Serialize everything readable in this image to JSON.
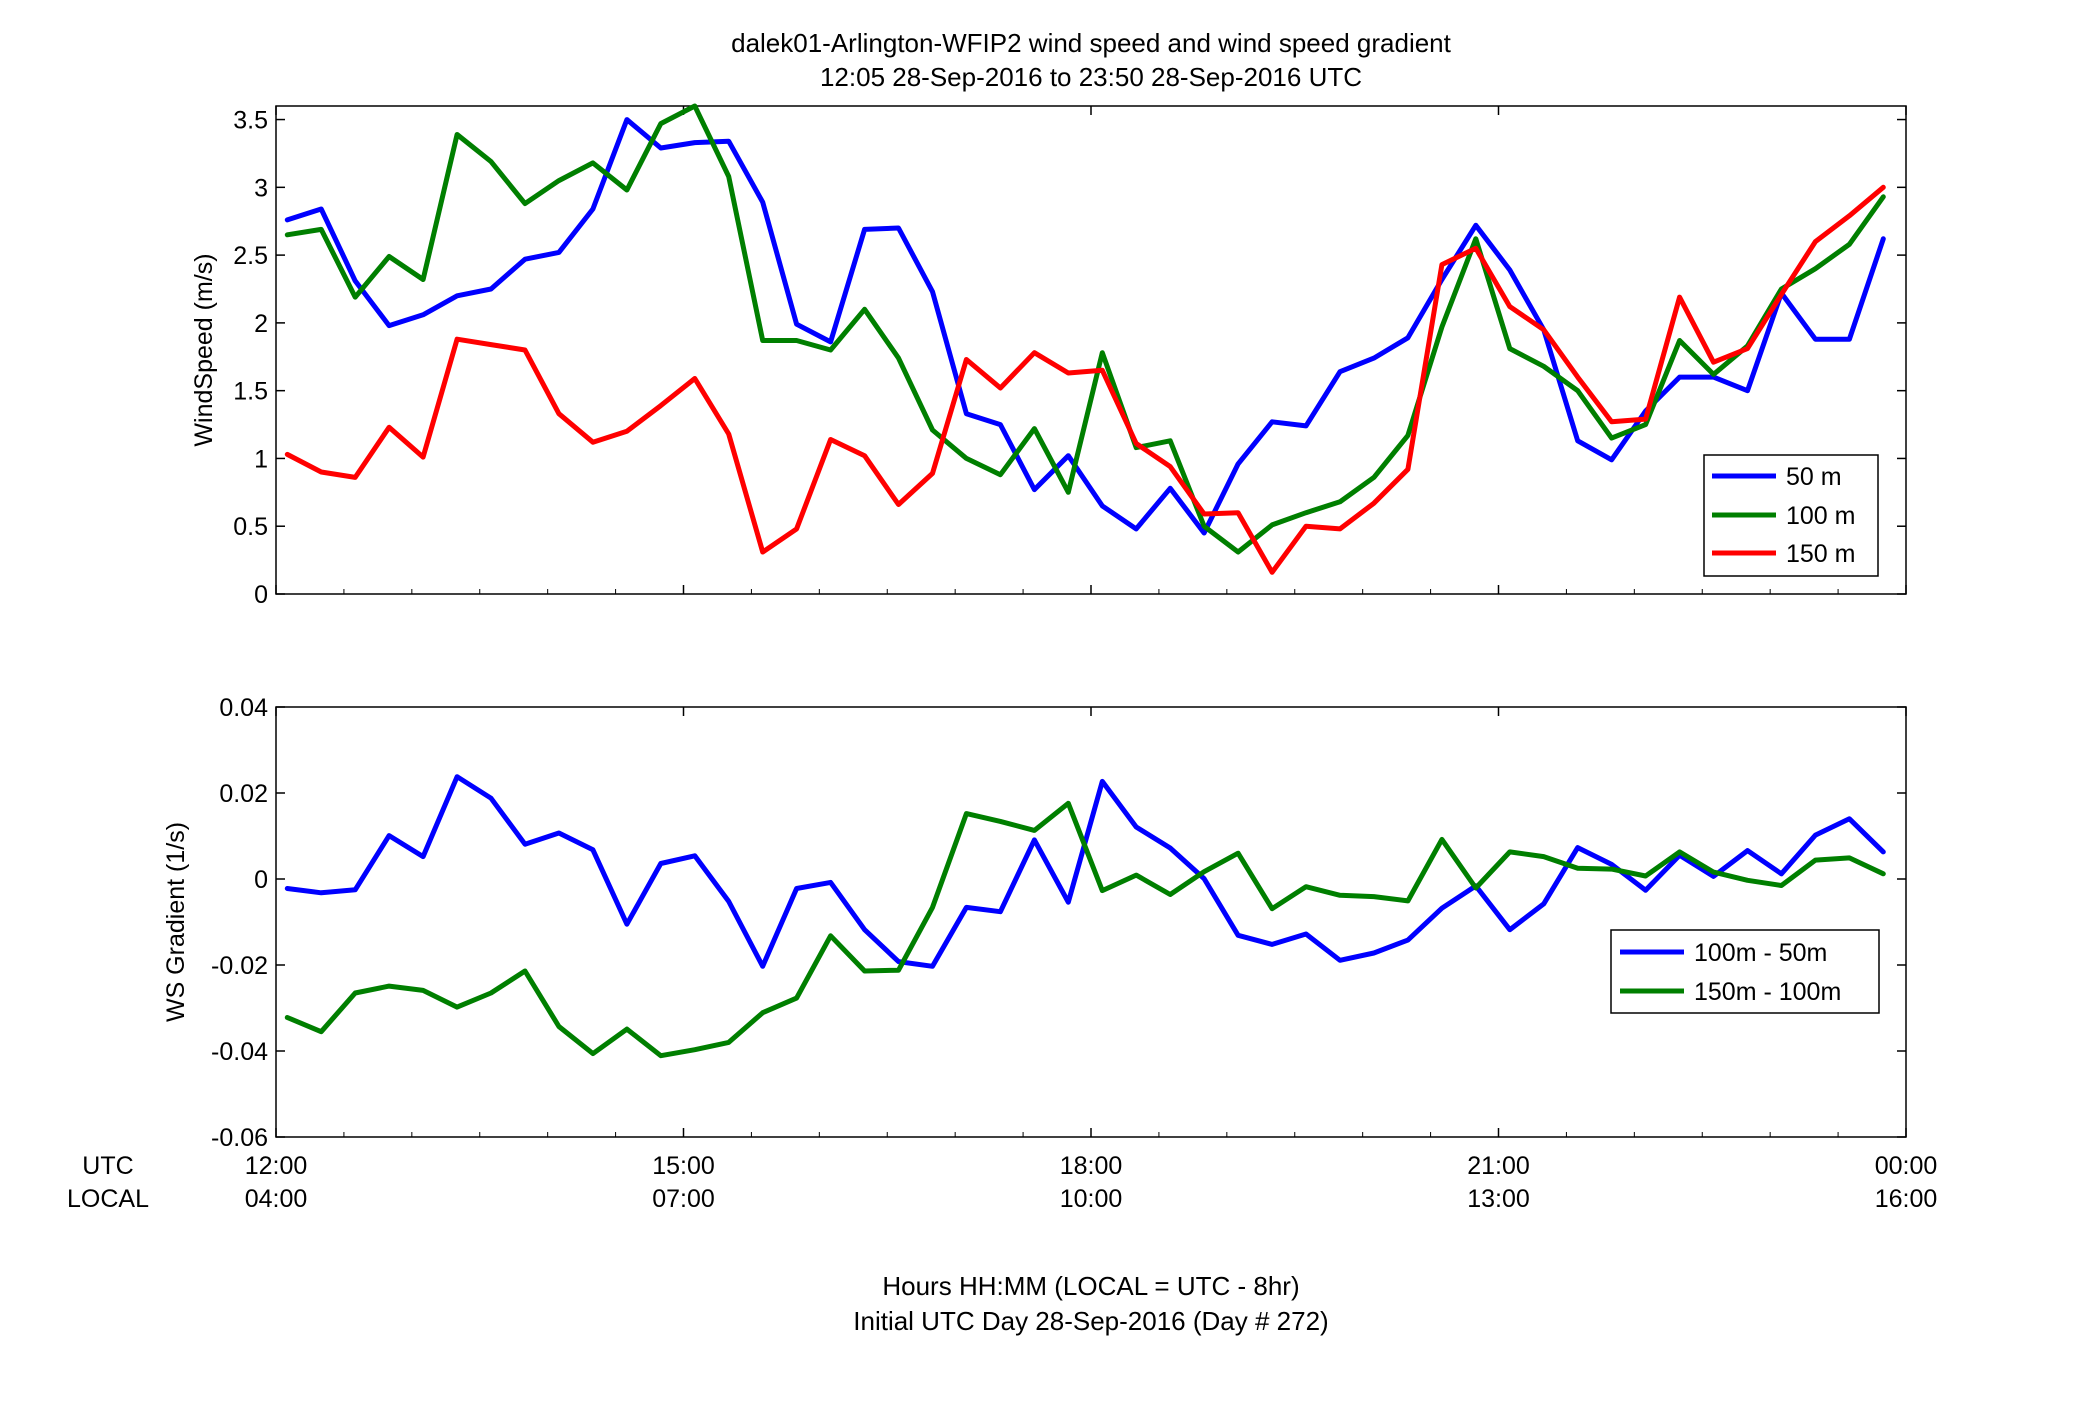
{
  "chart_data": [
    {
      "type": "line",
      "title": "dalek01-Arlington-WFIP2  wind speed and wind speed gradient",
      "subtitle": "12:05 28-Sep-2016 to 23:50 28-Sep-2016  UTC",
      "xlabel": "",
      "ylabel": "WindSpeed (m/s)",
      "xlim": [
        0,
        12
      ],
      "ylim": [
        0,
        3.6
      ],
      "yticks": [
        "0",
        "0.5",
        "1",
        "1.5",
        "2",
        "2.5",
        "3",
        "3.5"
      ],
      "grid": false,
      "legend": "right",
      "x": [
        0.083,
        0.333,
        0.583,
        0.833,
        1.083,
        1.333,
        1.583,
        1.833,
        2.083,
        2.333,
        2.583,
        2.833,
        3.083,
        3.333,
        3.583,
        3.833,
        4.083,
        4.333,
        4.583,
        4.833,
        5.083,
        5.333,
        5.583,
        5.833,
        6.083,
        6.333,
        6.583,
        6.833,
        7.083,
        7.333,
        7.583,
        7.833,
        8.083,
        8.333,
        8.583,
        8.833,
        9.083,
        9.333,
        9.583,
        9.833,
        10.083,
        10.333,
        10.583,
        10.833,
        11.083,
        11.333,
        11.583,
        11.833
      ],
      "series": [
        {
          "name": "50 m",
          "color": "#0000ff",
          "values": [
            2.76,
            2.84,
            2.31,
            1.98,
            2.06,
            2.2,
            2.25,
            2.47,
            2.52,
            2.84,
            3.5,
            3.29,
            3.33,
            3.34,
            2.89,
            1.99,
            1.86,
            2.69,
            2.7,
            2.23,
            1.33,
            1.25,
            0.77,
            1.02,
            0.65,
            0.48,
            0.78,
            0.45,
            0.96,
            1.27,
            1.24,
            1.64,
            1.74,
            1.89,
            2.32,
            2.72,
            2.39,
            1.95,
            1.13,
            0.99,
            1.35,
            1.6,
            1.6,
            1.5,
            2.22,
            1.88,
            1.88,
            2.62
          ]
        },
        {
          "name": "100 m",
          "color": "#007f00",
          "values": [
            2.65,
            2.69,
            2.19,
            2.49,
            2.32,
            3.39,
            3.19,
            2.88,
            3.05,
            3.18,
            2.98,
            3.47,
            3.6,
            3.08,
            1.87,
            1.87,
            1.8,
            2.1,
            1.74,
            1.21,
            1.0,
            0.88,
            1.22,
            0.75,
            1.78,
            1.08,
            1.13,
            0.5,
            0.31,
            0.51,
            0.6,
            0.68,
            0.86,
            1.17,
            1.97,
            2.62,
            1.81,
            1.68,
            1.5,
            1.15,
            1.25,
            1.87,
            1.62,
            1.83,
            2.25,
            2.4,
            2.58,
            2.93
          ]
        },
        {
          "name": "150 m",
          "color": "#ff0000",
          "values": [
            1.03,
            0.9,
            0.86,
            1.23,
            1.01,
            1.88,
            1.84,
            1.8,
            1.33,
            1.12,
            1.2,
            1.39,
            1.59,
            1.18,
            0.31,
            0.48,
            1.14,
            1.02,
            0.66,
            0.89,
            1.73,
            1.52,
            1.78,
            1.63,
            1.65,
            1.11,
            0.94,
            0.59,
            0.6,
            0.16,
            0.5,
            0.48,
            0.67,
            0.92,
            2.43,
            2.55,
            2.12,
            1.95,
            1.6,
            1.27,
            1.29,
            2.19,
            1.71,
            1.81,
            2.21,
            2.6,
            2.79,
            3.0
          ]
        }
      ]
    },
    {
      "type": "line",
      "title": "",
      "xlabel": "Hours HH:MM  (LOCAL = UTC - 8hr)",
      "xlabel2": "Initial UTC Day 28-Sep-2016 (Day # 272)",
      "ylabel": "WS Gradient (1/s)",
      "xlim": [
        0,
        12
      ],
      "ylim": [
        -0.06,
        0.04
      ],
      "yticks": [
        "-0.06",
        "-0.04",
        "-0.02",
        "0",
        "0.02",
        "0.04"
      ],
      "xticks_utc": [
        "12:00",
        "15:00",
        "18:00",
        "21:00",
        "00:00"
      ],
      "xticks_local": [
        "04:00",
        "07:00",
        "10:00",
        "13:00",
        "16:00"
      ],
      "xtick_row_labels": [
        "UTC",
        "LOCAL"
      ],
      "grid": false,
      "legend": "right",
      "x": [
        0.083,
        0.333,
        0.583,
        0.833,
        1.083,
        1.333,
        1.583,
        1.833,
        2.083,
        2.333,
        2.583,
        2.833,
        3.083,
        3.333,
        3.583,
        3.833,
        4.083,
        4.333,
        4.583,
        4.833,
        5.083,
        5.333,
        5.583,
        5.833,
        6.083,
        6.333,
        6.583,
        6.833,
        7.083,
        7.333,
        7.583,
        7.833,
        8.083,
        8.333,
        8.583,
        8.833,
        9.083,
        9.333,
        9.583,
        9.833,
        10.083,
        10.333,
        10.583,
        10.833,
        11.083,
        11.333,
        11.583,
        11.833
      ],
      "series": [
        {
          "name": "100m - 50m",
          "color": "#0000ff",
          "values": [
            -0.0022,
            -0.0032,
            -0.0025,
            0.0101,
            0.0052,
            0.0238,
            0.0188,
            0.0081,
            0.0107,
            0.0068,
            -0.0105,
            0.0036,
            0.0054,
            -0.0052,
            -0.0203,
            -0.0022,
            -0.0008,
            -0.0118,
            -0.0192,
            -0.0203,
            -0.0066,
            -0.0076,
            0.0091,
            -0.0054,
            0.0227,
            0.0121,
            0.0072,
            0.0001,
            -0.0131,
            -0.0152,
            -0.0128,
            -0.0189,
            -0.0172,
            -0.0142,
            -0.0068,
            -0.0016,
            -0.0118,
            -0.0058,
            0.0073,
            0.0034,
            -0.0026,
            0.0055,
            0.0006,
            0.0066,
            0.0012,
            0.0102,
            0.014,
            0.0063
          ]
        },
        {
          "name": "150m - 100m",
          "color": "#007f00",
          "values": [
            -0.0322,
            -0.0355,
            -0.0265,
            -0.0249,
            -0.0259,
            -0.0298,
            -0.0265,
            -0.0214,
            -0.0343,
            -0.0406,
            -0.0349,
            -0.0411,
            -0.0397,
            -0.038,
            -0.0311,
            -0.0277,
            -0.0132,
            -0.0214,
            -0.0212,
            -0.0066,
            0.0152,
            0.0134,
            0.0113,
            0.0176,
            -0.0027,
            0.0009,
            -0.0036,
            0.0017,
            0.006,
            -0.0069,
            -0.0018,
            -0.0038,
            -0.0041,
            -0.0051,
            0.0092,
            -0.0021,
            0.0063,
            0.0052,
            0.0025,
            0.0023,
            0.0007,
            0.0063,
            0.0016,
            -0.0003,
            -0.0015,
            0.0044,
            0.0049,
            0.0012
          ]
        }
      ]
    }
  ]
}
